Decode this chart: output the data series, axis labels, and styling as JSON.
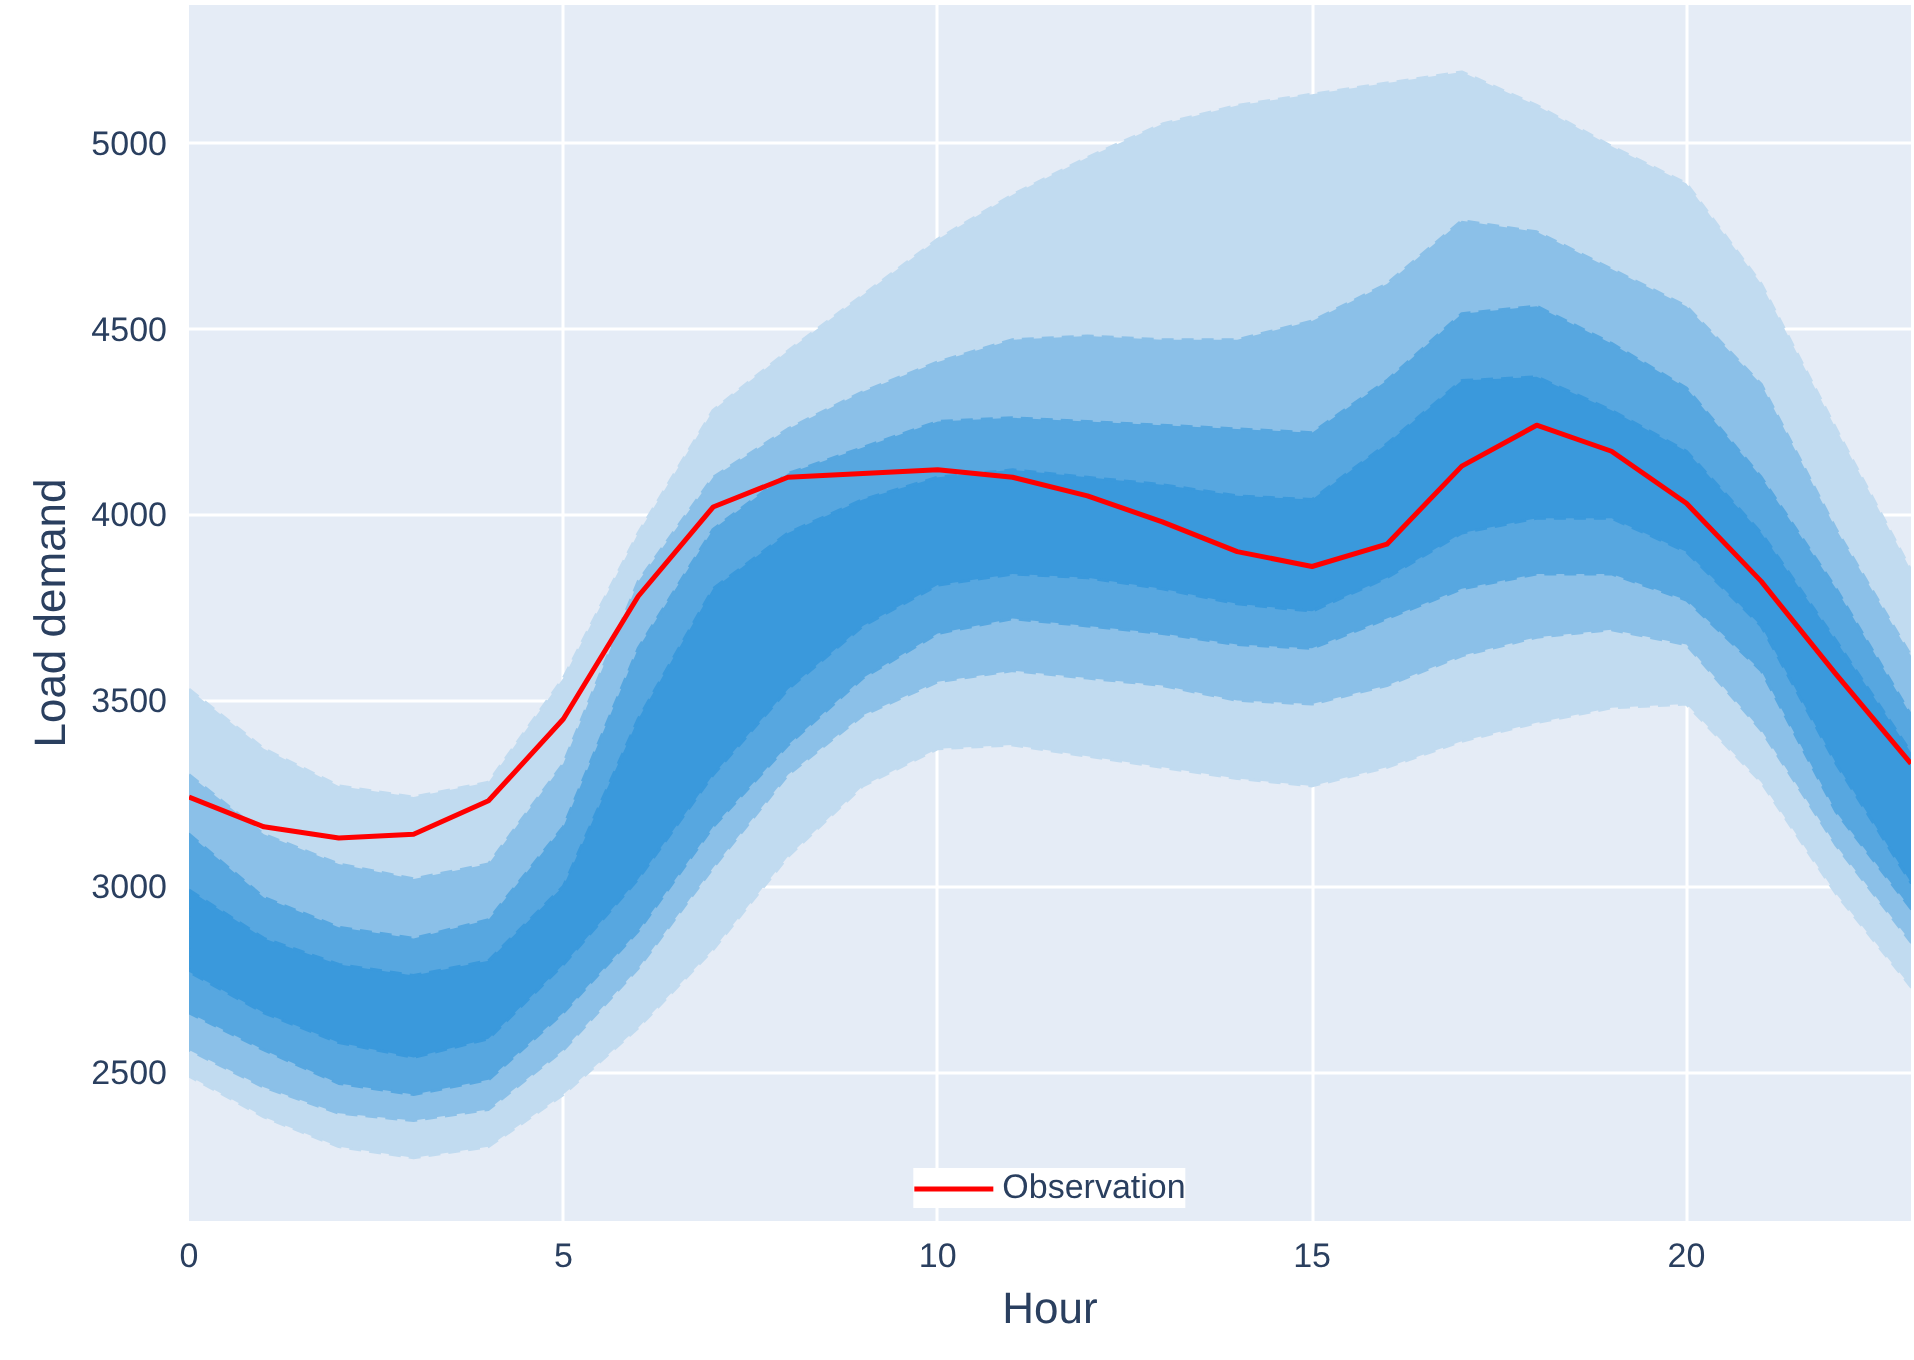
{
  "chart_data": {
    "type": "line",
    "xlabel": "Hour",
    "ylabel": "Load demand",
    "x": [
      0,
      1,
      2,
      3,
      4,
      5,
      6,
      7,
      8,
      9,
      10,
      11,
      12,
      13,
      14,
      15,
      16,
      17,
      18,
      19,
      20,
      21,
      22,
      23
    ],
    "xlim": [
      0,
      23
    ],
    "ylim": [
      2100,
      5370
    ],
    "xticks": [
      0,
      5,
      10,
      15,
      20
    ],
    "yticks": [
      2500,
      3000,
      3500,
      4000,
      4500,
      5000
    ],
    "grid": true,
    "legend": "bottom",
    "line_style": "dashed",
    "series": [
      {
        "color": "#c1dbf0",
        "values": [
          null,
          null,
          null,
          null,
          null,
          null,
          null,
          null,
          null,
          null,
          null,
          null,
          null,
          null,
          null,
          null,
          null,
          null,
          null,
          null,
          null,
          null,
          null,
          null
        ],
        "upper": [
          3530,
          3370,
          3270,
          3240,
          3280,
          3560,
          3950,
          4280,
          4440,
          4590,
          4740,
          4860,
          4960,
          5050,
          5100,
          5130,
          5160,
          5190,
          5100,
          4990,
          4890,
          4620,
          4230,
          3850
        ],
        "lower": [
          2490,
          2380,
          2300,
          2270,
          2300,
          2440,
          2620,
          2830,
          3080,
          3270,
          3370,
          3380,
          3350,
          3320,
          3290,
          3270,
          3320,
          3390,
          3440,
          3480,
          3490,
          3280,
          2980,
          2730
        ]
      },
      {
        "color": "#8bc0e8",
        "values": [
          null,
          null,
          null,
          null,
          null,
          null,
          null,
          null,
          null,
          null,
          null,
          null,
          null,
          null,
          null,
          null,
          null,
          null,
          null,
          null,
          null,
          null,
          null,
          null
        ],
        "upper": [
          3300,
          3140,
          3060,
          3020,
          3060,
          3330,
          3820,
          4100,
          4230,
          4330,
          4410,
          4470,
          4480,
          4470,
          4470,
          4520,
          4620,
          4790,
          4760,
          4660,
          4560,
          4350,
          3960,
          3620
        ],
        "lower": [
          2560,
          2460,
          2390,
          2370,
          2400,
          2560,
          2780,
          3050,
          3300,
          3460,
          3550,
          3580,
          3560,
          3540,
          3500,
          3490,
          3540,
          3620,
          3670,
          3690,
          3650,
          3420,
          3110,
          2850
        ]
      },
      {
        "color": "#57a7e0",
        "values": [
          null,
          null,
          null,
          null,
          null,
          null,
          null,
          null,
          null,
          null,
          null,
          null,
          null,
          null,
          null,
          null,
          null,
          null,
          null,
          null,
          null,
          null,
          null,
          null
        ],
        "upper": [
          3140,
          2970,
          2890,
          2860,
          2910,
          3160,
          3640,
          3960,
          4110,
          4180,
          4250,
          4260,
          4250,
          4240,
          4230,
          4220,
          4360,
          4540,
          4560,
          4460,
          4340,
          4100,
          3800,
          3460
        ],
        "lower": [
          2660,
          2560,
          2470,
          2440,
          2480,
          2660,
          2880,
          3160,
          3380,
          3560,
          3680,
          3720,
          3700,
          3680,
          3650,
          3640,
          3720,
          3800,
          3840,
          3840,
          3770,
          3580,
          3200,
          2940
        ]
      },
      {
        "color": "#3a99dc",
        "values": [
          null,
          null,
          null,
          null,
          null,
          null,
          null,
          null,
          null,
          null,
          null,
          null,
          null,
          null,
          null,
          null,
          null,
          null,
          null,
          null,
          null,
          null,
          null,
          null
        ],
        "upper": [
          2990,
          2860,
          2790,
          2760,
          2800,
          3000,
          3450,
          3800,
          3950,
          4040,
          4100,
          4120,
          4100,
          4080,
          4050,
          4040,
          4190,
          4360,
          4370,
          4280,
          4170,
          3950,
          3660,
          3360
        ],
        "lower": [
          2770,
          2660,
          2580,
          2540,
          2590,
          2790,
          3020,
          3300,
          3530,
          3700,
          3810,
          3840,
          3830,
          3800,
          3760,
          3740,
          3830,
          3950,
          3990,
          3990,
          3900,
          3700,
          3330,
          3010
        ]
      },
      {
        "name": "Observation",
        "color": "#ff0000",
        "line_style": "solid",
        "values": [
          3240,
          3160,
          3130,
          3140,
          3230,
          3450,
          3780,
          4020,
          4100,
          4110,
          4120,
          4100,
          4050,
          3980,
          3900,
          3860,
          3920,
          4130,
          4240,
          4170,
          4030,
          3820,
          3570,
          3330
        ]
      }
    ]
  }
}
